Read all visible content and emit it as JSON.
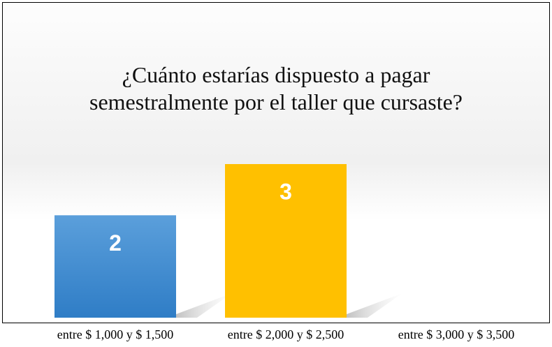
{
  "chart_data": {
    "type": "bar",
    "title": "¿Cuánto estarías dispuesto a pagar semestralmente por el taller que cursaste?",
    "categories": [
      "entre $ 1,000 y $ 1,500",
      "entre $ 2,000 y $ 2,500",
      "entre $ 3,000 y $ 3,500"
    ],
    "values": [
      2,
      3,
      null
    ],
    "colors": [
      "#4a8fd3",
      "#ffc000",
      "#a5a5a5"
    ]
  }
}
